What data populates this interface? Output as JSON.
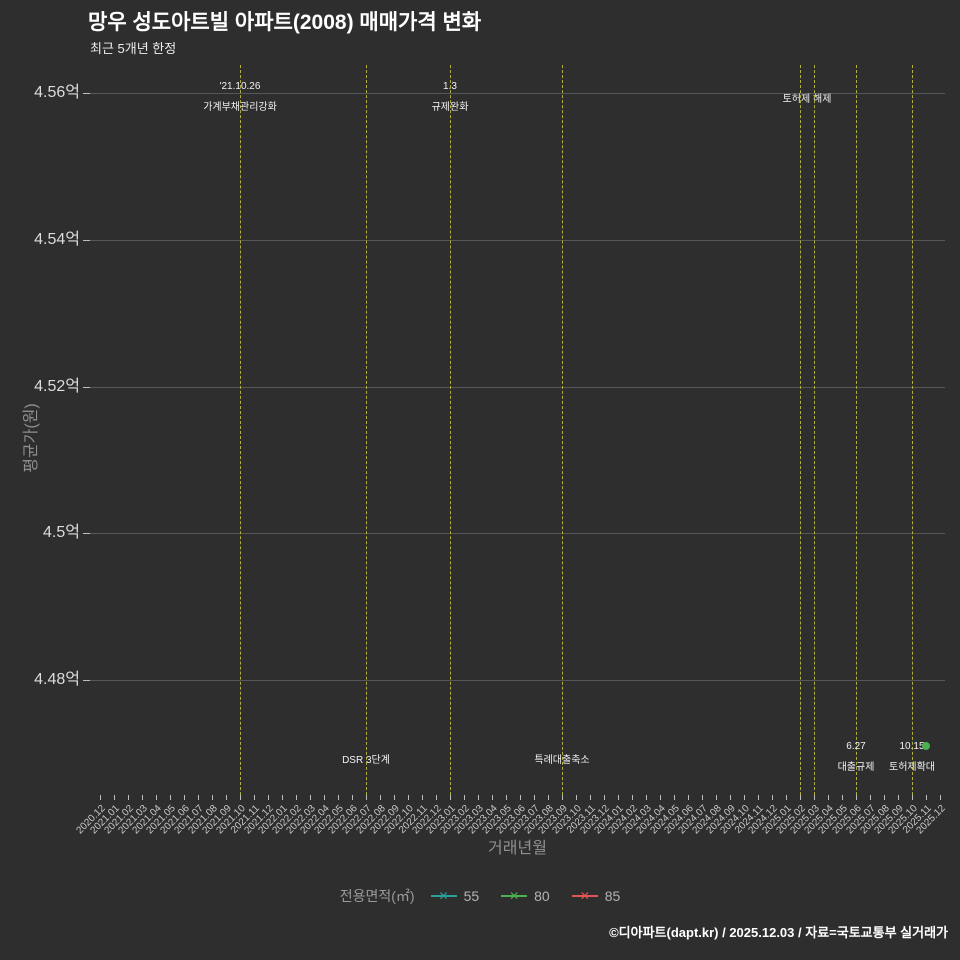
{
  "title": "망우 성도아트빌 아파트(2008) 매매가격 변화",
  "subtitle": "최근 5개년 한정",
  "y_axis": {
    "title": "평균가(원)",
    "ticks": [
      "4.56억",
      "4.54억",
      "4.52억",
      "4.5억",
      "4.48억"
    ]
  },
  "x_axis": {
    "title": "거래년월"
  },
  "legend": {
    "title": "전용면적(㎡)",
    "marker_glyph": "✕",
    "series": [
      {
        "label": "55",
        "color": "#2c9e96"
      },
      {
        "label": "80",
        "color": "#4caf50"
      },
      {
        "label": "85",
        "color": "#e05556"
      }
    ]
  },
  "footer": {
    "text": "©디아파트(dapt.kr) / 2025.12.03 / 자료=국토교통부 실거래가"
  },
  "chart_data": {
    "type": "line",
    "title": "망우 성도아트빌 아파트(2008) 매매가격 변화",
    "subtitle": "최근 5개년 한정",
    "xlabel": "거래년월",
    "ylabel": "평균가(원)",
    "y_unit": "억원",
    "ylim": [
      4.464,
      4.564
    ],
    "y_ticks": [
      4.56,
      4.54,
      4.52,
      4.5,
      4.48
    ],
    "grid": "horizontal only",
    "legend_position": "bottom center",
    "event_line_color": "#b0b03c",
    "categories": [
      "2020.12",
      "2021.01",
      "2021.02",
      "2021.03",
      "2021.04",
      "2021.05",
      "2021.06",
      "2021.07",
      "2021.08",
      "2021.09",
      "2021.10",
      "2021.11",
      "2021.12",
      "2022.01",
      "2022.02",
      "2022.03",
      "2022.04",
      "2022.05",
      "2022.06",
      "2022.07",
      "2022.08",
      "2022.09",
      "2022.10",
      "2022.11",
      "2022.12",
      "2023.01",
      "2023.02",
      "2023.03",
      "2023.04",
      "2023.05",
      "2023.06",
      "2023.07",
      "2023.08",
      "2023.09",
      "2023.10",
      "2023.11",
      "2023.12",
      "2024.01",
      "2024.02",
      "2024.03",
      "2024.04",
      "2024.05",
      "2024.06",
      "2024.07",
      "2024.08",
      "2024.09",
      "2024.10",
      "2024.11",
      "2024.12",
      "2025.01",
      "2025.02",
      "2025.03",
      "2025.04",
      "2025.05",
      "2025.06",
      "2025.07",
      "2025.08",
      "2025.09",
      "2025.10",
      "2025.11",
      "2025.12"
    ],
    "series": [
      {
        "name": "55",
        "color": "#2c9e96",
        "points": []
      },
      {
        "name": "80",
        "color": "#4caf50",
        "points": [
          {
            "x": "2025.11",
            "y": 4.471
          }
        ]
      },
      {
        "name": "85",
        "color": "#e05556",
        "points": []
      }
    ],
    "annotations": [
      {
        "x": "2021.10",
        "lines": [
          "'21.10.26",
          "가계부채관리강화"
        ],
        "pos": "top"
      },
      {
        "x": "2022.07",
        "lines": [
          "DSR 3단계"
        ],
        "pos": "bottom"
      },
      {
        "x": "2023.01",
        "lines": [
          "1.3",
          "규제완화"
        ],
        "pos": "top"
      },
      {
        "x": "2023.09",
        "lines": [
          "특례대출축소"
        ],
        "pos": "bottom"
      },
      {
        "x": "2025.02",
        "lines": [
          "토허제 해제"
        ],
        "pos": "top",
        "dx": 7
      },
      {
        "x": "2025.03",
        "lines": [],
        "pos": "top"
      },
      {
        "x": "2025.06",
        "lines": [
          "6.27",
          "대출규제"
        ],
        "pos": "bottom"
      },
      {
        "x": "2025.10",
        "lines": [
          "10.15",
          "토허제확대"
        ],
        "pos": "bottom"
      }
    ]
  }
}
